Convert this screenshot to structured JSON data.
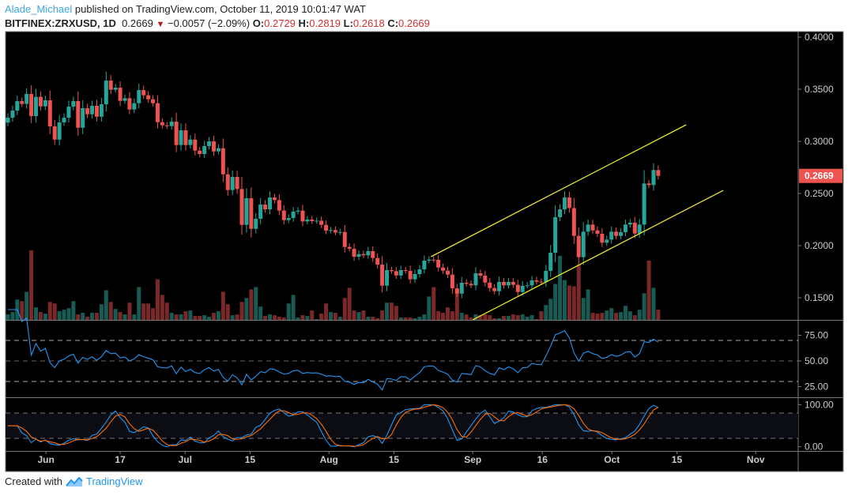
{
  "header": {
    "author": "Alade_Michael",
    "published": "published on TradingView.com, October 11, 2019 10:01:47 WAT",
    "symbol": "BITFINEX:ZRXUSD, 1D",
    "last": "0.2669",
    "change": "−0.0057 (−2.09%)",
    "o_label": "O:",
    "o": "0.2729",
    "h_label": "H:",
    "h": "0.2819",
    "l_label": "L:",
    "l": "0.2618",
    "c_label": "C:",
    "c": "0.2669",
    "down_arrow": "▼"
  },
  "footer": {
    "created_with": "Created with",
    "brand": "TradingView"
  },
  "colors": {
    "up": "#26a69a",
    "down": "#ef5350",
    "vol_up": "#175b54",
    "vol_down": "#7b2828",
    "rsi": "#2196f3",
    "stoch_k": "#2196f3",
    "stoch_d": "#ff6d00",
    "channel": "#e6e62a",
    "bg": "#000000"
  },
  "chart_data": {
    "type": "candlestick",
    "title": "BITFINEX:ZRXUSD, 1D",
    "interval": "1D",
    "first_bar_date": "2019-05-24",
    "last_bar_date": "2019-10-11",
    "current_price": 0.2669,
    "current_price_label": "0.2669",
    "ylim": [
      0.128,
      0.405
    ],
    "y_ticks": [
      {
        "value": 0.4,
        "label": "0.4000"
      },
      {
        "value": 0.35,
        "label": "0.3500"
      },
      {
        "value": 0.3,
        "label": "0.3000"
      },
      {
        "value": 0.25,
        "label": "0.2500"
      },
      {
        "value": 0.2,
        "label": "0.2000"
      },
      {
        "value": 0.15,
        "label": "0.1500"
      }
    ],
    "x_ticks": [
      {
        "date": "2019-06-01",
        "label": "Jun"
      },
      {
        "date": "2019-06-17",
        "label": "17"
      },
      {
        "date": "2019-07-01",
        "label": "Jul"
      },
      {
        "date": "2019-07-15",
        "label": "15"
      },
      {
        "date": "2019-08-01",
        "label": "Aug"
      },
      {
        "date": "2019-08-15",
        "label": "15"
      },
      {
        "date": "2019-09-01",
        "label": "Sep"
      },
      {
        "date": "2019-09-16",
        "label": "16"
      },
      {
        "date": "2019-10-01",
        "label": "Oct"
      },
      {
        "date": "2019-10-15",
        "label": "15"
      },
      {
        "date": "2019-11-01",
        "label": "Nov"
      }
    ],
    "close": [
      0.3227,
      0.3295,
      0.3386,
      0.3359,
      0.3455,
      0.3242,
      0.3427,
      0.3336,
      0.3394,
      0.3144,
      0.3017,
      0.3182,
      0.3227,
      0.3333,
      0.3386,
      0.3131,
      0.3318,
      0.326,
      0.3341,
      0.3237,
      0.3356,
      0.3583,
      0.3495,
      0.3515,
      0.3389,
      0.3414,
      0.3306,
      0.3366,
      0.3492,
      0.3442,
      0.3404,
      0.3366,
      0.3184,
      0.3154,
      0.3146,
      0.3189,
      0.2965,
      0.3106,
      0.2965,
      0.3017,
      0.2911,
      0.2879,
      0.2955,
      0.3,
      0.2904,
      0.2934,
      0.2684,
      0.2533,
      0.2659,
      0.2543,
      0.2199,
      0.2455,
      0.2161,
      0.2258,
      0.2394,
      0.2348,
      0.2462,
      0.2437,
      0.2336,
      0.2245,
      0.2265,
      0.2326,
      0.2336,
      0.2232,
      0.225,
      0.2235,
      0.2239,
      0.2199,
      0.2144,
      0.2149,
      0.2126,
      0.2131,
      0.1987,
      0.197,
      0.1894,
      0.1919,
      0.1907,
      0.1947,
      0.1881,
      0.1818,
      0.1616,
      0.1765,
      0.1755,
      0.1714,
      0.1765,
      0.1758,
      0.1677,
      0.1727,
      0.1773,
      0.1856,
      0.1866,
      0.1864,
      0.179,
      0.176,
      0.1722,
      0.159,
      0.154,
      0.1644,
      0.1634,
      0.1619,
      0.1735,
      0.1712,
      0.1646,
      0.1593,
      0.1563,
      0.1652,
      0.1619,
      0.1652,
      0.1624,
      0.1555,
      0.1614,
      0.1619,
      0.1667,
      0.1654,
      0.165,
      0.1758,
      0.1932,
      0.2273,
      0.2348,
      0.2462,
      0.2361,
      0.2093,
      0.1889,
      0.2134,
      0.2202,
      0.2146,
      0.2114,
      0.2028,
      0.2058,
      0.2134,
      0.2093,
      0.2129,
      0.2202,
      0.222,
      0.2116,
      0.2202,
      0.2596,
      0.2581,
      0.2725,
      0.2669
    ],
    "first_open": 0.318,
    "volume_relative": [
      7,
      10,
      26,
      24,
      36,
      89,
      16,
      10,
      8,
      23,
      21,
      11,
      13,
      15,
      24,
      7,
      9,
      4,
      9,
      9,
      20,
      38,
      23,
      14,
      10,
      7,
      22,
      7,
      42,
      21,
      21,
      15,
      52,
      32,
      22,
      9,
      7,
      7,
      11,
      12,
      5,
      5,
      6,
      4,
      9,
      11,
      36,
      20,
      6,
      7,
      23,
      28,
      39,
      42,
      17,
      5,
      7,
      6,
      4,
      3,
      21,
      32,
      3,
      6,
      5,
      12,
      1,
      8,
      21,
      10,
      9,
      4,
      28,
      41,
      12,
      10,
      12,
      4,
      4,
      2,
      12,
      22,
      22,
      18,
      3,
      3,
      3,
      2,
      4,
      7,
      30,
      42,
      11,
      9,
      16,
      11,
      36,
      9,
      7,
      3,
      7,
      6,
      7,
      6,
      2,
      2,
      5,
      5,
      7,
      6,
      7,
      4,
      6,
      1,
      11,
      19,
      27,
      46,
      82,
      51,
      44,
      43,
      71,
      28,
      39,
      9,
      8,
      9,
      12,
      15,
      9,
      10,
      18,
      11,
      6,
      13,
      34,
      76,
      41,
      13
    ],
    "channel": {
      "upper": {
        "start": {
          "date": "2019-08-23",
          "price": 0.1894
        },
        "end": {
          "date": "2019-10-17",
          "price": 0.3159
        }
      },
      "lower": {
        "start": {
          "date": "2019-09-01",
          "price": 0.1288
        },
        "end": {
          "date": "2019-10-25",
          "price": 0.253
        }
      }
    },
    "rsi": {
      "period": 14,
      "levels": [
        70,
        50,
        30
      ],
      "ticks": [
        {
          "value": 75,
          "label": "75.00"
        },
        {
          "value": 50,
          "label": "50.00"
        },
        {
          "value": 25,
          "label": "25.00"
        }
      ]
    },
    "stoch_rsi": {
      "k": 3,
      "d": 3,
      "rsi_length": 14,
      "stoch_length": 14,
      "levels": [
        80,
        20
      ],
      "ticks": [
        {
          "value": 100,
          "label": "100.00"
        },
        {
          "value": 0,
          "label": "0.00"
        }
      ]
    }
  }
}
